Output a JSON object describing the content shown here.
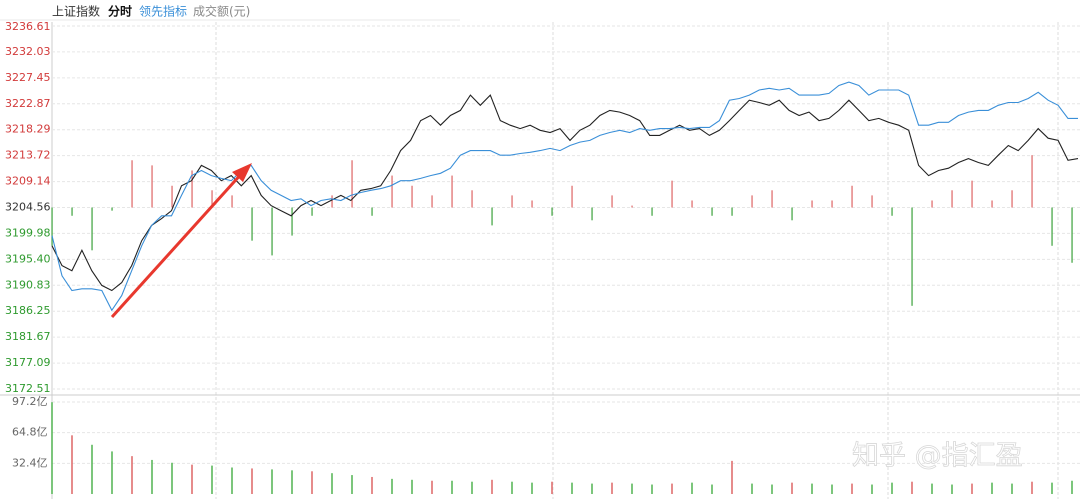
{
  "header": {
    "title": "上证指数"
  },
  "watermark": "知乎 @指汇盈",
  "chart_data": [
    {
      "type": "line",
      "ylim": [
        3172.51,
        3236.61
      ],
      "yticks": [
        3236.61,
        3232.03,
        3227.45,
        3222.87,
        3218.29,
        3213.72,
        3209.14,
        3204.56,
        3199.98,
        {
          "value": 3195.4,
          "label": "3195.40"
        },
        3190.83,
        3186.25,
        3181.67,
        3177.09,
        3172.51
      ],
      "grid": true,
      "series": [
        {
          "name": "分时",
          "color": "#222222",
          "values": [
            3197.8,
            3194.3,
            3193.4,
            3197.0,
            3193.4,
            3190.8,
            3189.9,
            3191.3,
            3194.3,
            3198.7,
            3201.4,
            3202.6,
            3204.0,
            3208.4,
            3209.3,
            3212.0,
            3211.1,
            3209.3,
            3210.2,
            3208.4,
            3210.2,
            3206.7,
            3204.9,
            3204.0,
            3203.1,
            3204.9,
            3205.8,
            3204.9,
            3205.8,
            3206.7,
            3205.8,
            3207.6,
            3207.9,
            3208.4,
            3211.1,
            3214.6,
            3216.4,
            3219.9,
            3220.8,
            3219.1,
            3220.8,
            3221.7,
            3224.4,
            3222.6,
            3224.4,
            3219.9,
            3219.1,
            3218.5,
            3219.1,
            3218.2,
            3217.8,
            3218.5,
            3216.4,
            3218.2,
            3219.1,
            3220.8,
            3221.7,
            3221.4,
            3220.8,
            3219.9,
            3217.3,
            3217.3,
            3218.2,
            3219.1,
            3218.2,
            3218.5,
            3217.3,
            3218.2,
            3219.9,
            3221.7,
            3223.5,
            3223.1,
            3222.6,
            3223.5,
            3221.7,
            3220.8,
            3221.4,
            3219.9,
            3220.3,
            3221.7,
            3223.5,
            3221.7,
            3219.9,
            3220.3,
            3219.6,
            3219.1,
            3218.2,
            3212.0,
            3210.2,
            3211.1,
            3211.5,
            3212.5,
            3213.2,
            3212.5,
            3212.0,
            3213.8,
            3215.5,
            3214.6,
            3216.4,
            3218.5,
            3216.8,
            3216.4,
            3212.9,
            3213.2
          ]
        },
        {
          "name": "领先指标",
          "color": "#3a8fd8",
          "values": [
            3199.6,
            3192.5,
            3189.9,
            3190.2,
            3190.2,
            3189.9,
            3186.4,
            3189.0,
            3193.4,
            3197.8,
            3201.4,
            3203.1,
            3203.1,
            3206.7,
            3210.2,
            3211.1,
            3210.2,
            3209.7,
            3209.3,
            3211.1,
            3212.0,
            3209.3,
            3207.6,
            3206.7,
            3205.8,
            3206.1,
            3204.9,
            3205.8,
            3206.1,
            3205.8,
            3206.7,
            3207.2,
            3207.6,
            3207.9,
            3208.4,
            3209.3,
            3209.3,
            3209.7,
            3210.2,
            3210.6,
            3211.5,
            3213.8,
            3214.6,
            3214.6,
            3214.6,
            3213.8,
            3213.8,
            3214.1,
            3214.3,
            3214.6,
            3215.0,
            3214.6,
            3215.5,
            3216.1,
            3216.4,
            3217.3,
            3217.8,
            3218.2,
            3217.8,
            3218.5,
            3218.2,
            3218.5,
            3218.5,
            3218.7,
            3218.5,
            3218.7,
            3218.7,
            3219.9,
            3223.5,
            3223.8,
            3224.4,
            3225.3,
            3225.6,
            3225.3,
            3225.6,
            3224.4,
            3224.4,
            3224.4,
            3224.7,
            3226.1,
            3226.7,
            3226.1,
            3224.4,
            3225.3,
            3225.3,
            3225.3,
            3224.4,
            3219.1,
            3219.1,
            3219.6,
            3219.6,
            3220.8,
            3221.4,
            3221.7,
            3221.7,
            3222.6,
            3223.1,
            3223.1,
            3223.8,
            3224.9,
            3223.5,
            3222.6,
            3220.3,
            3220.3
          ]
        },
        {
          "type": "bar",
          "up_color": "#e07070",
          "down_color": "#4aa84a",
          "values": [
            3197.8,
            3203.1,
            3197.0,
            3204.0,
            3212.9,
            3212.0,
            3208.4,
            3211.1,
            3207.6,
            3206.7,
            3198.7,
            3196.1,
            3199.6,
            3203.1,
            3206.7,
            3212.9,
            3203.1,
            3210.2,
            3208.4,
            3206.7,
            3210.2,
            3207.6,
            3201.4,
            3206.7,
            3205.8,
            3203.1,
            3208.4,
            3202.3,
            3206.7,
            3204.9,
            3203.1,
            3209.3,
            3205.8,
            3203.1,
            3203.1,
            3206.7,
            3207.6,
            3202.3,
            3205.8,
            3205.8,
            3208.4,
            3206.7,
            3203.1,
            3187.2,
            3205.8,
            3207.6,
            3209.3,
            3205.8,
            3207.6,
            3213.8,
            3197.8,
            3194.8
          ]
        }
      ]
    },
    {
      "type": "bar",
      "title": "成交额(元)",
      "color": "#5cb85c",
      "ylim": [
        0,
        97.2
      ],
      "yticks": [
        {
          "value": 97.2,
          "label": "97.2亿"
        },
        {
          "value": 64.8,
          "label": "64.8亿"
        },
        {
          "value": 32.4,
          "label": "32.4亿"
        }
      ],
      "values": [
        97,
        62,
        52,
        45,
        40,
        36,
        33,
        31,
        30,
        28,
        27,
        26,
        25,
        24,
        22,
        20,
        18,
        16,
        15,
        14,
        14,
        13,
        15,
        13,
        12,
        13,
        12,
        11,
        12,
        11,
        10,
        11,
        12,
        10,
        35,
        11,
        10,
        12,
        11,
        10,
        11,
        10,
        12,
        13,
        11,
        10,
        11,
        12,
        11,
        13,
        12,
        14
      ]
    }
  ]
}
